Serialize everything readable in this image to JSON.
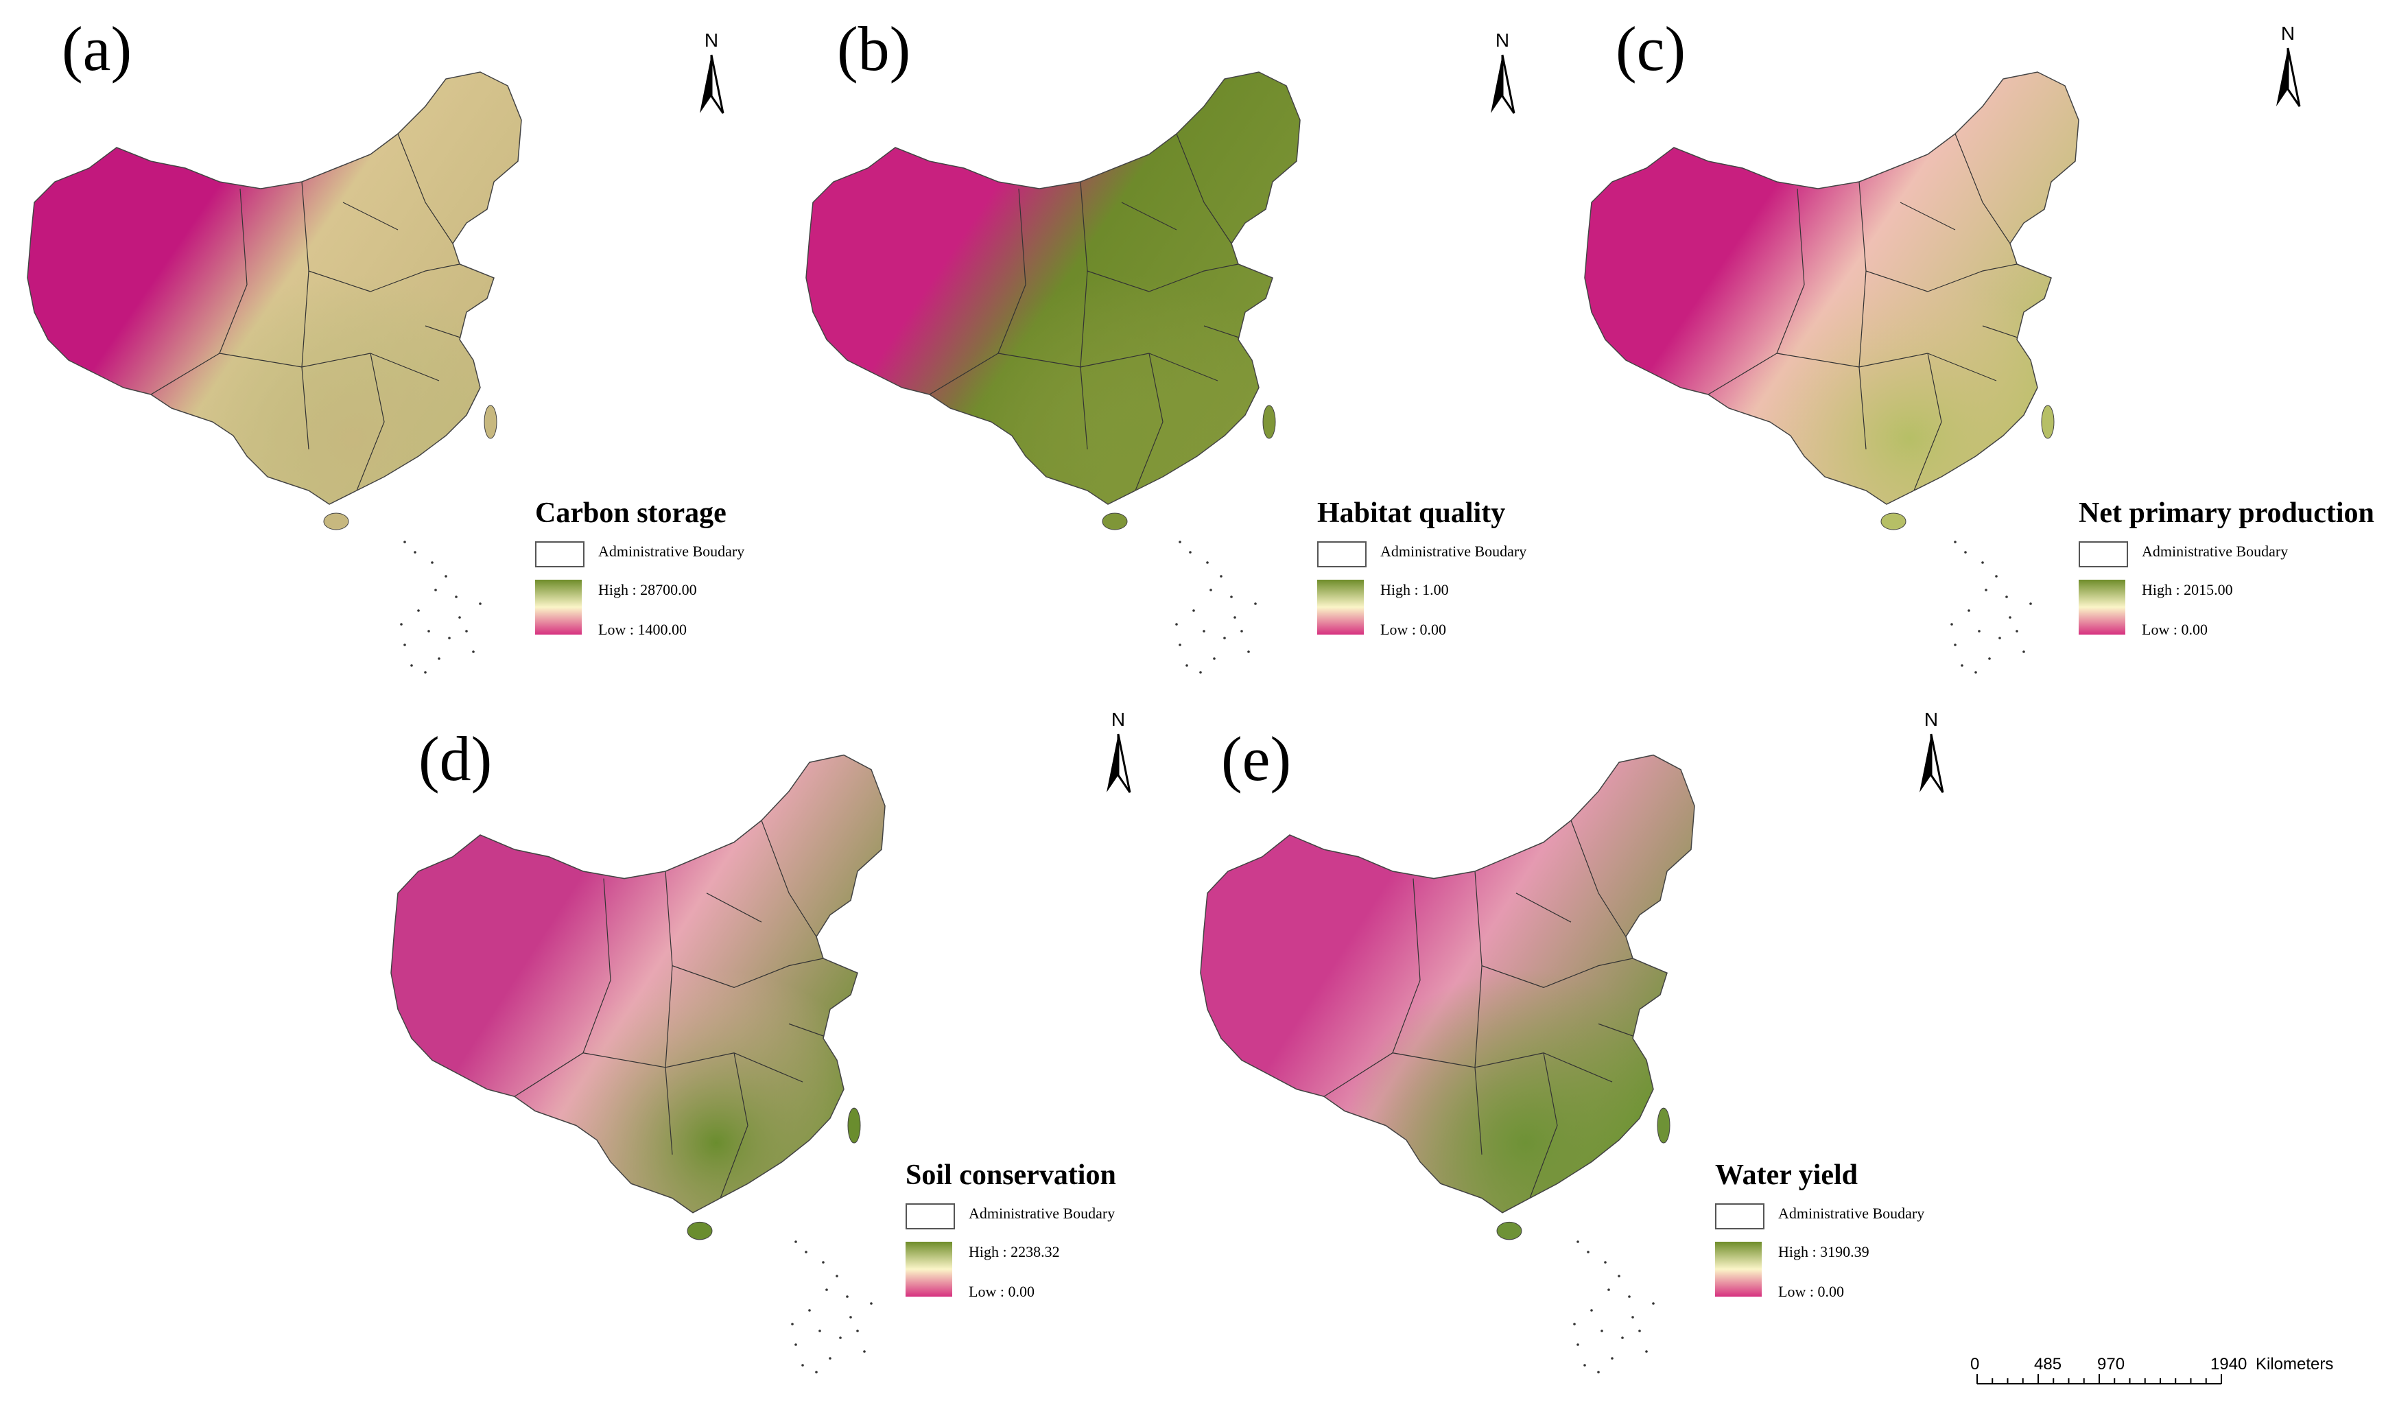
{
  "panels": [
    {
      "id": "a",
      "label": "(a)",
      "title": "Carbon storage",
      "boundary_label": "Administrative Boudary",
      "high": "High : 28700.00",
      "low": "Low : 1400.00",
      "north": "N",
      "colors": {
        "west": "#c2187d",
        "east": "#b9bd7a",
        "north": "#d8c590",
        "south": "#c7b87f"
      }
    },
    {
      "id": "b",
      "label": "(b)",
      "title": "Habitat quality",
      "boundary_label": "Administrative Boudary",
      "high": "High : 1.00",
      "low": "Low : 0.00",
      "north": "N",
      "colors": {
        "west": "#c8217f",
        "east": "#8a9a3e",
        "north": "#6e8a2b",
        "south": "#7f9638"
      }
    },
    {
      "id": "c",
      "label": "(c)",
      "title": "Net primary production",
      "boundary_label": "Administrative Boudary",
      "high": "High : 2015.00",
      "low": "Low : 0.00",
      "north": "N",
      "colors": {
        "west": "#c81f7f",
        "east": "#e9c39a",
        "north": "#efc0b4",
        "south": "#b6bf66"
      }
    },
    {
      "id": "d",
      "label": "(d)",
      "title": "Soil conservation",
      "boundary_label": "Administrative Boudary",
      "high": "High : 2238.32",
      "low": "Low : 0.00",
      "north": "N",
      "colors": {
        "west": "#c73a8a",
        "east": "#e4b7a8",
        "north": "#e8a7b3",
        "south": "#6a8d2e"
      }
    },
    {
      "id": "e",
      "label": "(e)",
      "title": "Water yield",
      "boundary_label": "Administrative Boudary",
      "high": "High : 3190.39",
      "low": "Low : 0.00",
      "north": "N",
      "colors": {
        "west": "#cc3c8d",
        "east": "#7f9d3c",
        "north": "#e59ab1",
        "south": "#6e9236"
      }
    }
  ],
  "legend_gradient": {
    "high": "#6f8d2a",
    "mid": "#fbf5c8",
    "low": "#d6317f"
  },
  "scale_bar": {
    "ticks": [
      "0",
      "485",
      "970",
      "1940"
    ],
    "unit": "Kilometers"
  }
}
